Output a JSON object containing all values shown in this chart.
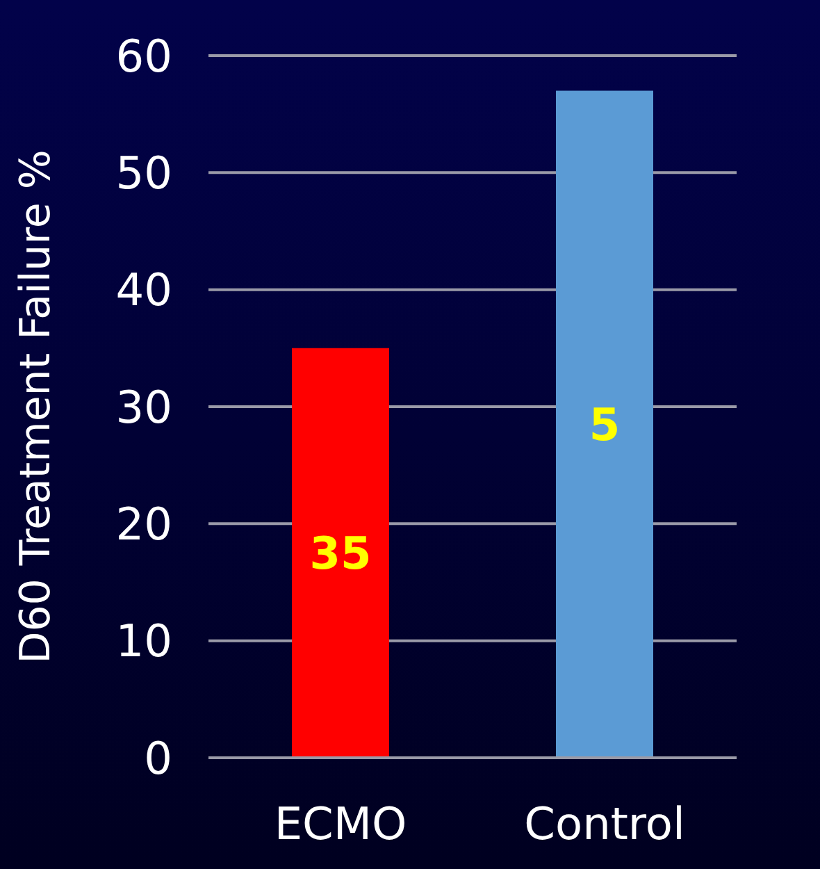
{
  "chart_data": {
    "type": "bar",
    "ylabel": "D60 Treatment Failure %",
    "categories": [
      "ECMO",
      "Control"
    ],
    "values": [
      35,
      57
    ],
    "colors": [
      "#ff0000",
      "#5b9bd5"
    ],
    "value_labels": [
      "35",
      null
    ],
    "annotations": [
      "5"
    ],
    "ylim": [
      0,
      60
    ],
    "yticks": [
      0,
      10,
      20,
      30,
      40,
      50,
      60
    ],
    "grid": "y"
  }
}
